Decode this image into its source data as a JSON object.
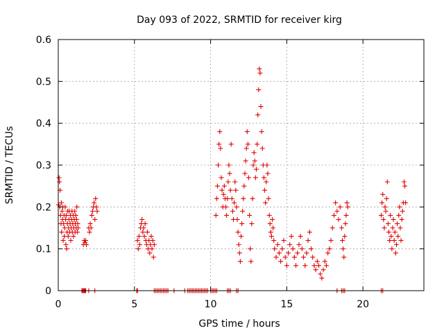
{
  "chart_data": {
    "type": "scatter",
    "title": "Day 093 of 2022, SRMTID for receiver kirg",
    "xlabel": "GPS time / hours",
    "ylabel": "SRMTID / TECUs",
    "xlim": [
      0,
      24
    ],
    "ylim": [
      0,
      0.6
    ],
    "xticks": [
      0,
      5,
      10,
      15,
      20
    ],
    "yticks": [
      0,
      0.1,
      0.2,
      0.3,
      0.4,
      0.5,
      0.6
    ],
    "xtick_labels": [
      "0",
      "5",
      "10",
      "15",
      "20"
    ],
    "ytick_labels": [
      "0",
      "0.1",
      "0.2",
      "0.3",
      "0.4",
      "0.5",
      "0.6"
    ],
    "grid": true,
    "marker": "+",
    "color": "#e00000",
    "series": [
      {
        "name": "SRMTID",
        "points": [
          [
            0.02,
            0.205
          ],
          [
            0.05,
            0.27
          ],
          [
            0.08,
            0.26
          ],
          [
            0.1,
            0.2
          ],
          [
            0.12,
            0.24
          ],
          [
            0.15,
            0.18
          ],
          [
            0.18,
            0.16
          ],
          [
            0.2,
            0.21
          ],
          [
            0.22,
            0.14
          ],
          [
            0.25,
            0.19
          ],
          [
            0.28,
            0.17
          ],
          [
            0.3,
            0.2
          ],
          [
            0.32,
            0.12
          ],
          [
            0.35,
            0.16
          ],
          [
            0.38,
            0.18
          ],
          [
            0.4,
            0.13
          ],
          [
            0.42,
            0.15
          ],
          [
            0.45,
            0.2
          ],
          [
            0.48,
            0.17
          ],
          [
            0.5,
            0.11
          ],
          [
            0.52,
            0.18
          ],
          [
            0.55,
            0.1
          ],
          [
            0.58,
            0.14
          ],
          [
            0.6,
            0.16
          ],
          [
            0.62,
            0.19
          ],
          [
            0.65,
            0.13
          ],
          [
            0.68,
            0.15
          ],
          [
            0.7,
            0.17
          ],
          [
            0.72,
            0.19
          ],
          [
            0.75,
            0.14
          ],
          [
            0.78,
            0.16
          ],
          [
            0.8,
            0.18
          ],
          [
            0.82,
            0.12
          ],
          [
            0.85,
            0.15
          ],
          [
            0.88,
            0.17
          ],
          [
            0.9,
            0.19
          ],
          [
            0.92,
            0.14
          ],
          [
            0.95,
            0.16
          ],
          [
            0.98,
            0.18
          ],
          [
            1.0,
            0.13
          ],
          [
            1.02,
            0.15
          ],
          [
            1.05,
            0.17
          ],
          [
            1.08,
            0.19
          ],
          [
            1.1,
            0.14
          ],
          [
            1.12,
            0.16
          ],
          [
            1.15,
            0.18
          ],
          [
            1.18,
            0.15
          ],
          [
            1.2,
            0.17
          ],
          [
            1.22,
            0.2
          ],
          [
            1.25,
            0.14
          ],
          [
            1.28,
            0.16
          ],
          [
            1.3,
            0.15
          ],
          [
            1.65,
            0.11
          ],
          [
            1.7,
            0.12
          ],
          [
            1.75,
            0.115
          ],
          [
            1.8,
            0.12
          ],
          [
            1.85,
            0.11
          ],
          [
            2.0,
            0.15
          ],
          [
            2.05,
            0.14
          ],
          [
            2.1,
            0.16
          ],
          [
            2.15,
            0.15
          ],
          [
            2.2,
            0.18
          ],
          [
            2.25,
            0.19
          ],
          [
            2.3,
            0.2
          ],
          [
            2.35,
            0.21
          ],
          [
            2.4,
            0.17
          ],
          [
            2.45,
            0.22
          ],
          [
            2.5,
            0.2
          ],
          [
            2.55,
            0.19
          ],
          [
            5.2,
            0.12
          ],
          [
            5.25,
            0.1
          ],
          [
            5.3,
            0.13
          ],
          [
            5.35,
            0.11
          ],
          [
            5.4,
            0.15
          ],
          [
            5.45,
            0.16
          ],
          [
            5.5,
            0.17
          ],
          [
            5.55,
            0.14
          ],
          [
            5.6,
            0.15
          ],
          [
            5.65,
            0.13
          ],
          [
            5.7,
            0.16
          ],
          [
            5.75,
            0.12
          ],
          [
            5.8,
            0.11
          ],
          [
            5.85,
            0.14
          ],
          [
            5.9,
            0.1
          ],
          [
            5.95,
            0.12
          ],
          [
            6.0,
            0.09
          ],
          [
            6.05,
            0.11
          ],
          [
            6.1,
            0.13
          ],
          [
            6.15,
            0.1
          ],
          [
            6.2,
            0.12
          ],
          [
            6.25,
            0.08
          ],
          [
            6.3,
            0.11
          ],
          [
            10.35,
            0.18
          ],
          [
            10.4,
            0.22
          ],
          [
            10.45,
            0.25
          ],
          [
            10.5,
            0.3
          ],
          [
            10.55,
            0.35
          ],
          [
            10.6,
            0.38
          ],
          [
            10.65,
            0.34
          ],
          [
            10.7,
            0.27
          ],
          [
            10.75,
            0.24
          ],
          [
            10.8,
            0.2
          ],
          [
            10.85,
            0.23
          ],
          [
            10.9,
            0.25
          ],
          [
            10.95,
            0.22
          ],
          [
            11.0,
            0.2
          ],
          [
            11.05,
            0.18
          ],
          [
            11.1,
            0.22
          ],
          [
            11.15,
            0.26
          ],
          [
            11.2,
            0.3
          ],
          [
            11.25,
            0.28
          ],
          [
            11.3,
            0.24
          ],
          [
            11.35,
            0.35
          ],
          [
            11.4,
            0.22
          ],
          [
            11.45,
            0.19
          ],
          [
            11.5,
            0.17
          ],
          [
            11.55,
            0.21
          ],
          [
            11.6,
            0.26
          ],
          [
            11.65,
            0.24
          ],
          [
            11.7,
            0.2
          ],
          [
            11.75,
            0.17
          ],
          [
            11.8,
            0.14
          ],
          [
            11.85,
            0.11
          ],
          [
            11.9,
            0.09
          ],
          [
            11.95,
            0.07
          ],
          [
            12.0,
            0.13
          ],
          [
            12.05,
            0.16
          ],
          [
            12.1,
            0.19
          ],
          [
            12.15,
            0.22
          ],
          [
            12.2,
            0.25
          ],
          [
            12.25,
            0.28
          ],
          [
            12.3,
            0.31
          ],
          [
            12.35,
            0.34
          ],
          [
            12.4,
            0.38
          ],
          [
            12.45,
            0.35
          ],
          [
            12.5,
            0.27
          ],
          [
            12.55,
            0.18
          ],
          [
            12.6,
            0.1
          ],
          [
            12.65,
            0.07
          ],
          [
            12.7,
            0.16
          ],
          [
            12.75,
            0.22
          ],
          [
            12.8,
            0.3
          ],
          [
            12.85,
            0.33
          ],
          [
            12.9,
            0.31
          ],
          [
            12.95,
            0.27
          ],
          [
            13.0,
            0.29
          ],
          [
            13.05,
            0.35
          ],
          [
            13.1,
            0.42
          ],
          [
            13.15,
            0.48
          ],
          [
            13.2,
            0.53
          ],
          [
            13.25,
            0.52
          ],
          [
            13.3,
            0.44
          ],
          [
            13.35,
            0.38
          ],
          [
            13.4,
            0.34
          ],
          [
            13.45,
            0.3
          ],
          [
            13.5,
            0.27
          ],
          [
            13.55,
            0.24
          ],
          [
            13.6,
            0.21
          ],
          [
            13.65,
            0.26
          ],
          [
            13.7,
            0.3
          ],
          [
            13.75,
            0.28
          ],
          [
            13.8,
            0.22
          ],
          [
            13.85,
            0.18
          ],
          [
            13.9,
            0.16
          ],
          [
            13.95,
            0.14
          ],
          [
            14.0,
            0.13
          ],
          [
            14.05,
            0.17
          ],
          [
            14.1,
            0.15
          ],
          [
            14.15,
            0.12
          ],
          [
            14.2,
            0.1
          ],
          [
            14.3,
            0.08
          ],
          [
            14.4,
            0.11
          ],
          [
            14.5,
            0.09
          ],
          [
            14.6,
            0.07
          ],
          [
            14.7,
            0.1
          ],
          [
            14.8,
            0.12
          ],
          [
            14.9,
            0.08
          ],
          [
            15.0,
            0.06
          ],
          [
            15.1,
            0.09
          ],
          [
            15.2,
            0.11
          ],
          [
            15.3,
            0.13
          ],
          [
            15.4,
            0.1
          ],
          [
            15.5,
            0.08
          ],
          [
            15.6,
            0.06
          ],
          [
            15.7,
            0.09
          ],
          [
            15.8,
            0.11
          ],
          [
            15.9,
            0.13
          ],
          [
            16.0,
            0.1
          ],
          [
            16.1,
            0.08
          ],
          [
            16.2,
            0.06
          ],
          [
            16.3,
            0.09
          ],
          [
            16.4,
            0.12
          ],
          [
            16.5,
            0.14
          ],
          [
            16.6,
            0.1
          ],
          [
            16.7,
            0.08
          ],
          [
            16.8,
            0.06
          ],
          [
            16.9,
            0.05
          ],
          [
            17.0,
            0.07
          ],
          [
            17.1,
            0.06
          ],
          [
            17.2,
            0.04
          ],
          [
            17.3,
            0.03
          ],
          [
            17.4,
            0.05
          ],
          [
            17.5,
            0.07
          ],
          [
            17.6,
            0.06
          ],
          [
            17.7,
            0.09
          ],
          [
            17.8,
            0.1
          ],
          [
            17.9,
            0.12
          ],
          [
            18.0,
            0.15
          ],
          [
            18.1,
            0.18
          ],
          [
            18.2,
            0.21
          ],
          [
            18.3,
            0.19
          ],
          [
            18.4,
            0.17
          ],
          [
            18.5,
            0.2
          ],
          [
            18.6,
            0.15
          ],
          [
            18.65,
            0.12
          ],
          [
            18.7,
            0.1
          ],
          [
            18.75,
            0.08
          ],
          [
            18.8,
            0.13
          ],
          [
            18.85,
            0.16
          ],
          [
            18.9,
            0.18
          ],
          [
            18.95,
            0.21
          ],
          [
            19.0,
            0.2
          ],
          [
            21.2,
            0.18
          ],
          [
            21.25,
            0.21
          ],
          [
            21.3,
            0.23
          ],
          [
            21.35,
            0.17
          ],
          [
            21.4,
            0.15
          ],
          [
            21.45,
            0.2
          ],
          [
            21.5,
            0.19
          ],
          [
            21.55,
            0.22
          ],
          [
            21.6,
            0.26
          ],
          [
            21.65,
            0.16
          ],
          [
            21.7,
            0.14
          ],
          [
            21.75,
            0.12
          ],
          [
            21.8,
            0.18
          ],
          [
            21.85,
            0.13
          ],
          [
            21.9,
            0.1
          ],
          [
            21.95,
            0.15
          ],
          [
            22.0,
            0.17
          ],
          [
            22.05,
            0.12
          ],
          [
            22.1,
            0.14
          ],
          [
            22.15,
            0.09
          ],
          [
            22.2,
            0.11
          ],
          [
            22.25,
            0.16
          ],
          [
            22.3,
            0.13
          ],
          [
            22.35,
            0.18
          ],
          [
            22.4,
            0.2
          ],
          [
            22.45,
            0.15
          ],
          [
            22.5,
            0.12
          ],
          [
            22.55,
            0.17
          ],
          [
            22.6,
            0.19
          ],
          [
            22.65,
            0.21
          ],
          [
            22.7,
            0.26
          ],
          [
            22.75,
            0.25
          ],
          [
            22.8,
            0.21
          ],
          [
            1.55,
            0
          ],
          [
            1.6,
            0
          ],
          [
            1.65,
            0
          ],
          [
            1.7,
            0
          ],
          [
            1.75,
            0
          ],
          [
            1.8,
            0
          ],
          [
            2.0,
            0
          ],
          [
            2.4,
            0
          ],
          [
            5.15,
            0
          ],
          [
            5.2,
            0
          ],
          [
            6.3,
            0
          ],
          [
            6.4,
            0
          ],
          [
            6.5,
            0
          ],
          [
            6.6,
            0
          ],
          [
            6.7,
            0
          ],
          [
            6.8,
            0
          ],
          [
            6.9,
            0
          ],
          [
            7.0,
            0
          ],
          [
            7.1,
            0
          ],
          [
            7.2,
            0
          ],
          [
            7.6,
            0
          ],
          [
            8.3,
            0
          ],
          [
            8.5,
            0
          ],
          [
            8.6,
            0
          ],
          [
            8.7,
            0
          ],
          [
            8.8,
            0
          ],
          [
            8.9,
            0
          ],
          [
            9.0,
            0
          ],
          [
            9.1,
            0
          ],
          [
            9.2,
            0
          ],
          [
            9.3,
            0
          ],
          [
            9.4,
            0
          ],
          [
            9.5,
            0
          ],
          [
            9.6,
            0
          ],
          [
            9.7,
            0
          ],
          [
            9.8,
            0
          ],
          [
            10.0,
            0
          ],
          [
            10.1,
            0
          ],
          [
            10.2,
            0
          ],
          [
            10.3,
            0
          ],
          [
            10.4,
            0
          ],
          [
            11.1,
            0
          ],
          [
            11.2,
            0
          ],
          [
            11.3,
            0
          ],
          [
            11.7,
            0
          ],
          [
            11.8,
            0
          ],
          [
            18.3,
            0
          ],
          [
            18.6,
            0
          ],
          [
            18.7,
            0
          ],
          [
            18.8,
            0
          ],
          [
            21.2,
            0
          ],
          [
            21.3,
            0
          ]
        ]
      }
    ]
  }
}
